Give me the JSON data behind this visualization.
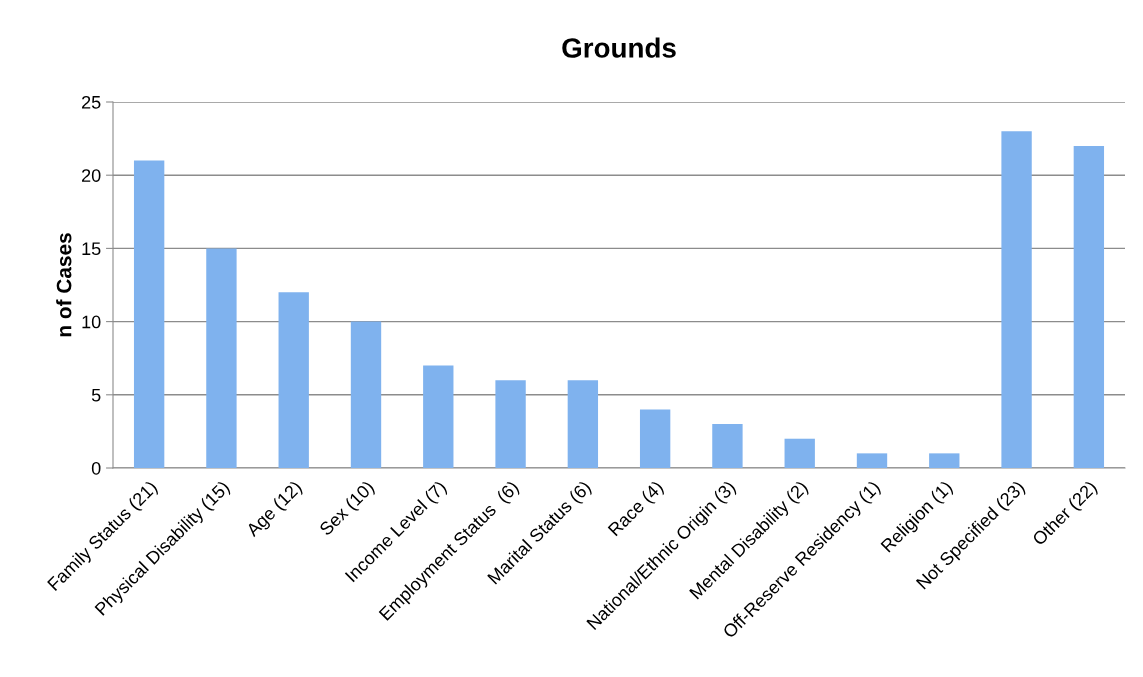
{
  "chart_data": {
    "type": "bar",
    "title": "Grounds",
    "ylabel": "n of Cases",
    "categories": [
      "Family Status (21)",
      "Physical Disability (15)",
      "Age (12)",
      "Sex (10)",
      "Income Level (7)",
      "Employment Status  (6)",
      "Marital Status (6)",
      "Race (4)",
      "National/Ethnic Origin (3)",
      "Mental Disability (2)",
      "Off-Reserve Residency (1)",
      "Religion (1)",
      "Not Specified (23)",
      "Other (22)"
    ],
    "values": [
      21,
      15,
      12,
      10,
      7,
      6,
      6,
      4,
      3,
      2,
      1,
      1,
      23,
      22
    ],
    "color": "#7fb2ee",
    "ylim": [
      0,
      25
    ],
    "yticks": [
      0,
      5,
      10,
      15,
      20,
      25
    ],
    "grid": "y",
    "legend": false
  }
}
